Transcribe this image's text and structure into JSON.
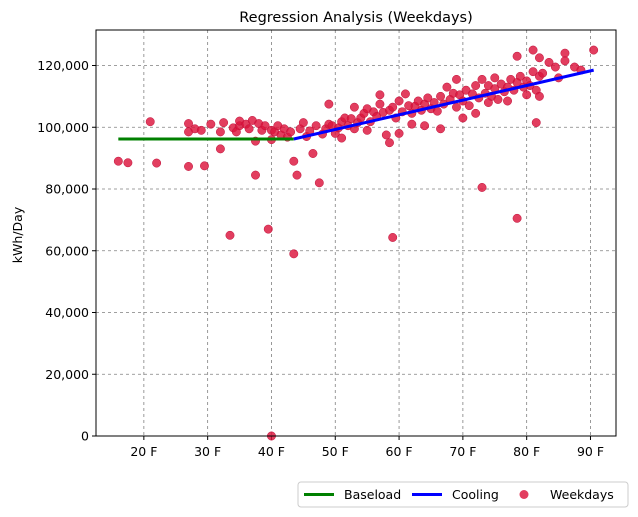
{
  "chart_data": {
    "type": "scatter",
    "title": "Regression Analysis (Weekdays)",
    "xlabel": "",
    "ylabel": "kWh/Day",
    "xlim": [
      12.5,
      94.0
    ],
    "ylim": [
      0,
      131500
    ],
    "x_ticks": [
      20,
      30,
      40,
      50,
      60,
      70,
      80,
      90
    ],
    "x_tick_labels": [
      "20 F",
      "30 F",
      "40 F",
      "50 F",
      "60 F",
      "70 F",
      "80 F",
      "90 F"
    ],
    "y_ticks": [
      0,
      20000,
      40000,
      60000,
      80000,
      100000,
      120000
    ],
    "y_tick_labels": [
      "0",
      "20,000",
      "40,000",
      "60,000",
      "80,000",
      "100,000",
      "120,000"
    ],
    "grid": true,
    "legend_position": "bottom-right, below plot",
    "legend": [
      "Baseload",
      "Cooling",
      "Weekdays"
    ],
    "colors": {
      "baseload": "#008000",
      "cooling": "#0000ff",
      "points": "#dc143c",
      "grid": "#808080"
    },
    "series": [
      {
        "name": "Baseload",
        "kind": "line",
        "x": [
          16,
          43.5
        ],
        "y": [
          96200,
          96200
        ]
      },
      {
        "name": "Cooling",
        "kind": "line",
        "x": [
          43.5,
          90.5
        ],
        "y": [
          96200,
          118500
        ]
      },
      {
        "name": "Weekdays",
        "kind": "scatter",
        "points": [
          [
            16,
            89000
          ],
          [
            17.5,
            88500
          ],
          [
            21,
            101800
          ],
          [
            22,
            88400
          ],
          [
            27,
            87300
          ],
          [
            27,
            101200
          ],
          [
            27,
            98500
          ],
          [
            28,
            99500
          ],
          [
            29,
            99000
          ],
          [
            29.5,
            87500
          ],
          [
            30.5,
            101000
          ],
          [
            32,
            98500
          ],
          [
            32,
            93000
          ],
          [
            32.5,
            101500
          ],
          [
            33.5,
            65000
          ],
          [
            34,
            99800
          ],
          [
            34.5,
            98500
          ],
          [
            35,
            100500
          ],
          [
            35,
            102000
          ],
          [
            36,
            101000
          ],
          [
            36.5,
            99500
          ],
          [
            37,
            102200
          ],
          [
            37.5,
            95500
          ],
          [
            37.5,
            84500
          ],
          [
            38,
            101200
          ],
          [
            38.5,
            99000
          ],
          [
            39,
            100500
          ],
          [
            39.5,
            67000
          ],
          [
            40,
            99000
          ],
          [
            40,
            96000
          ],
          [
            40.5,
            98500
          ],
          [
            41,
            100500
          ],
          [
            41.5,
            97500
          ],
          [
            42,
            99500
          ],
          [
            42.5,
            96800
          ],
          [
            43,
            98500
          ],
          [
            43.5,
            59000
          ],
          [
            43.5,
            89000
          ],
          [
            44,
            84500
          ],
          [
            44.5,
            99500
          ],
          [
            45,
            101500
          ],
          [
            45.5,
            97000
          ],
          [
            46,
            98800
          ],
          [
            46.5,
            91500
          ],
          [
            47,
            100500
          ],
          [
            47.5,
            82000
          ],
          [
            48,
            97800
          ],
          [
            48.5,
            99500
          ],
          [
            49,
            101000
          ],
          [
            49,
            107500
          ],
          [
            49.5,
            100500
          ],
          [
            50,
            98000
          ],
          [
            50.5,
            99800
          ],
          [
            51,
            96500
          ],
          [
            51,
            101800
          ],
          [
            51.5,
            103000
          ],
          [
            52,
            100500
          ],
          [
            52.5,
            102800
          ],
          [
            53,
            99500
          ],
          [
            53,
            106500
          ],
          [
            53.5,
            101500
          ],
          [
            54,
            103000
          ],
          [
            54.5,
            104500
          ],
          [
            55,
            99000
          ],
          [
            55,
            106000
          ],
          [
            55.5,
            101800
          ],
          [
            56,
            105000
          ],
          [
            56.5,
            103500
          ],
          [
            57,
            107500
          ],
          [
            57,
            110500
          ],
          [
            57.5,
            104800
          ],
          [
            58,
            97500
          ],
          [
            58.5,
            105500
          ],
          [
            58.5,
            95000
          ],
          [
            59,
            106500
          ],
          [
            59,
            64300
          ],
          [
            59.5,
            103000
          ],
          [
            60,
            108500
          ],
          [
            60,
            98000
          ],
          [
            60.5,
            105000
          ],
          [
            61,
            110800
          ],
          [
            61.5,
            107000
          ],
          [
            62,
            104500
          ],
          [
            62,
            101000
          ],
          [
            62.5,
            106800
          ],
          [
            63,
            108500
          ],
          [
            63.5,
            105500
          ],
          [
            64,
            100500
          ],
          [
            64,
            107500
          ],
          [
            64.5,
            109500
          ],
          [
            65,
            106000
          ],
          [
            65.5,
            108000
          ],
          [
            66,
            105200
          ],
          [
            66.5,
            99500
          ],
          [
            66.5,
            110000
          ],
          [
            67,
            107500
          ],
          [
            67.5,
            113000
          ],
          [
            68,
            109000
          ],
          [
            68.5,
            111000
          ],
          [
            69,
            106500
          ],
          [
            69,
            115500
          ],
          [
            69.5,
            110500
          ],
          [
            70,
            103000
          ],
          [
            70,
            108500
          ],
          [
            70.5,
            112000
          ],
          [
            71,
            107000
          ],
          [
            71.5,
            110800
          ],
          [
            72,
            104500
          ],
          [
            72,
            113500
          ],
          [
            72.5,
            109500
          ],
          [
            73,
            115500
          ],
          [
            73,
            80500
          ],
          [
            73.5,
            111000
          ],
          [
            74,
            108000
          ],
          [
            74,
            113500
          ],
          [
            74.5,
            110000
          ],
          [
            75,
            116000
          ],
          [
            75,
            112500
          ],
          [
            75.5,
            109000
          ],
          [
            76,
            114000
          ],
          [
            76.5,
            111500
          ],
          [
            77,
            113000
          ],
          [
            77,
            108500
          ],
          [
            77.5,
            115500
          ],
          [
            78,
            112000
          ],
          [
            78.5,
            114500
          ],
          [
            78.5,
            70500
          ],
          [
            78.5,
            123000
          ],
          [
            79,
            116500
          ],
          [
            79.5,
            113000
          ],
          [
            80,
            115000
          ],
          [
            80,
            110500
          ],
          [
            80.5,
            113500
          ],
          [
            81,
            125000
          ],
          [
            81,
            118000
          ],
          [
            81.5,
            101500
          ],
          [
            81.5,
            112000
          ],
          [
            82,
            116500
          ],
          [
            82,
            110000
          ],
          [
            82,
            122500
          ],
          [
            82.5,
            117500
          ],
          [
            83.5,
            121000
          ],
          [
            84.5,
            119500
          ],
          [
            85,
            116000
          ],
          [
            86,
            124000
          ],
          [
            86,
            121500
          ],
          [
            87.5,
            119500
          ],
          [
            88.5,
            118500
          ],
          [
            90.5,
            125000
          ],
          [
            40,
            0
          ]
        ]
      }
    ]
  }
}
